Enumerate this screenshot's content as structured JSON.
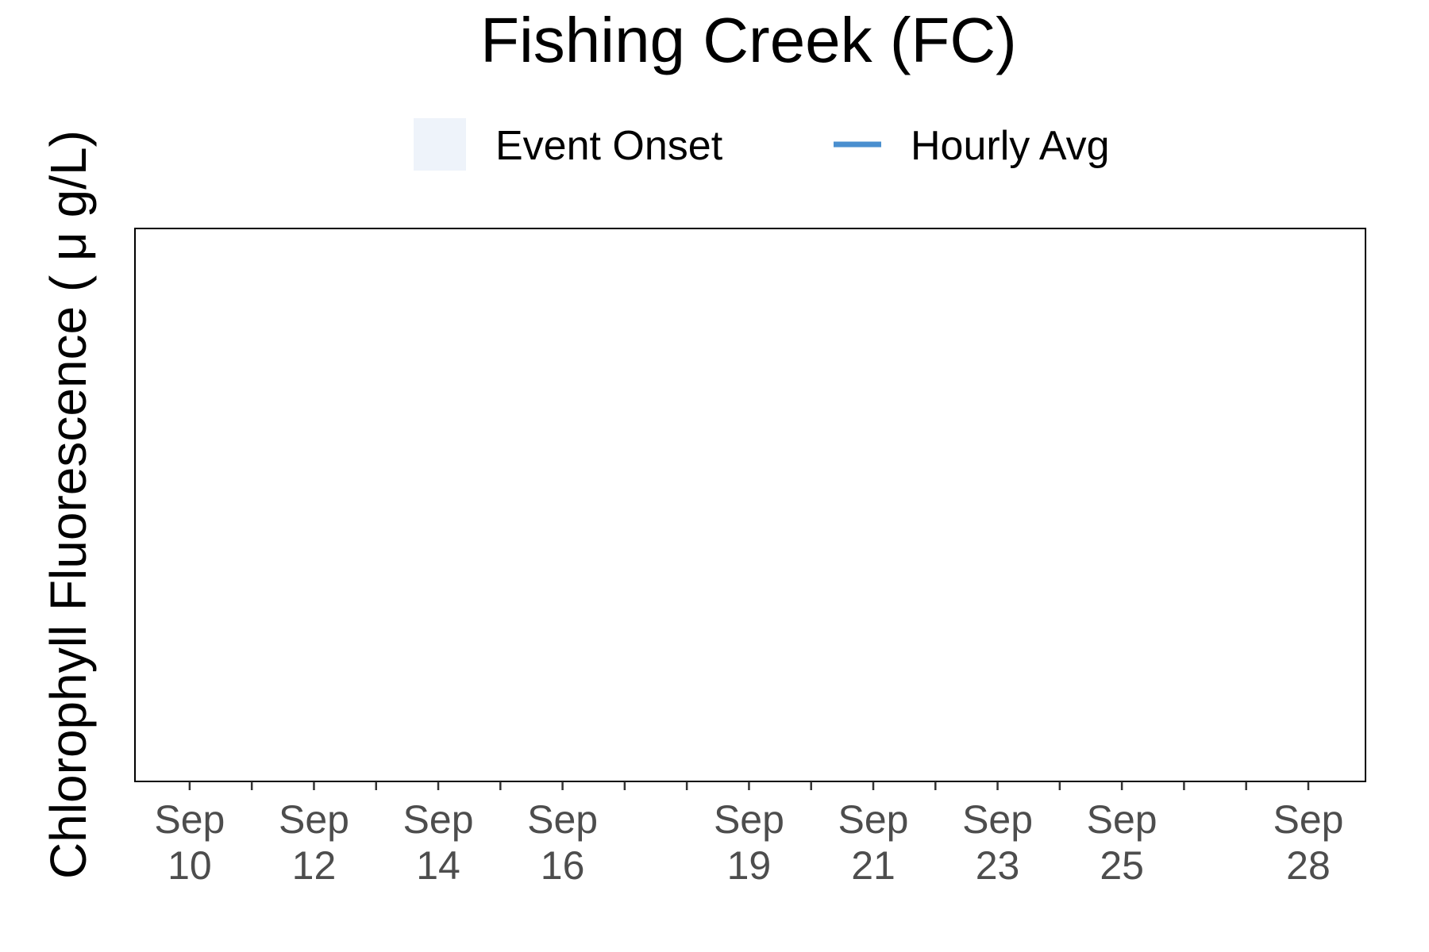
{
  "chart_data": {
    "type": "line",
    "title": "Fishing Creek (FC)",
    "xlabel": "",
    "ylabel": "Chlorophyll Fluorescence ( μ g/L)",
    "x_range": [
      "Sep 9",
      "Sep 29"
    ],
    "major_ticks": [
      {
        "month": "Sep",
        "day": "10"
      },
      {
        "month": "Sep",
        "day": "12"
      },
      {
        "month": "Sep",
        "day": "14"
      },
      {
        "month": "Sep",
        "day": "16"
      },
      {
        "month": "Sep",
        "day": "19"
      },
      {
        "month": "Sep",
        "day": "21"
      },
      {
        "month": "Sep",
        "day": "23"
      },
      {
        "month": "Sep",
        "day": "25"
      },
      {
        "month": "Sep",
        "day": "28"
      }
    ],
    "major_tick_days": [
      10,
      12,
      14,
      16,
      19,
      21,
      23,
      25,
      28
    ],
    "minor_tick_days": [
      11,
      13,
      15,
      17,
      18,
      20,
      22,
      24,
      26,
      27
    ],
    "x_domain_days": [
      9.12,
      28.92
    ],
    "legend": [
      {
        "label": "Event Onset",
        "kind": "fill",
        "color": "#eef3fa"
      },
      {
        "label": "Hourly Avg",
        "kind": "line",
        "color": "#4a8fcf"
      }
    ],
    "legend_position": "top",
    "series": [
      {
        "name": "Hourly Avg",
        "values": []
      }
    ],
    "grid": false
  }
}
